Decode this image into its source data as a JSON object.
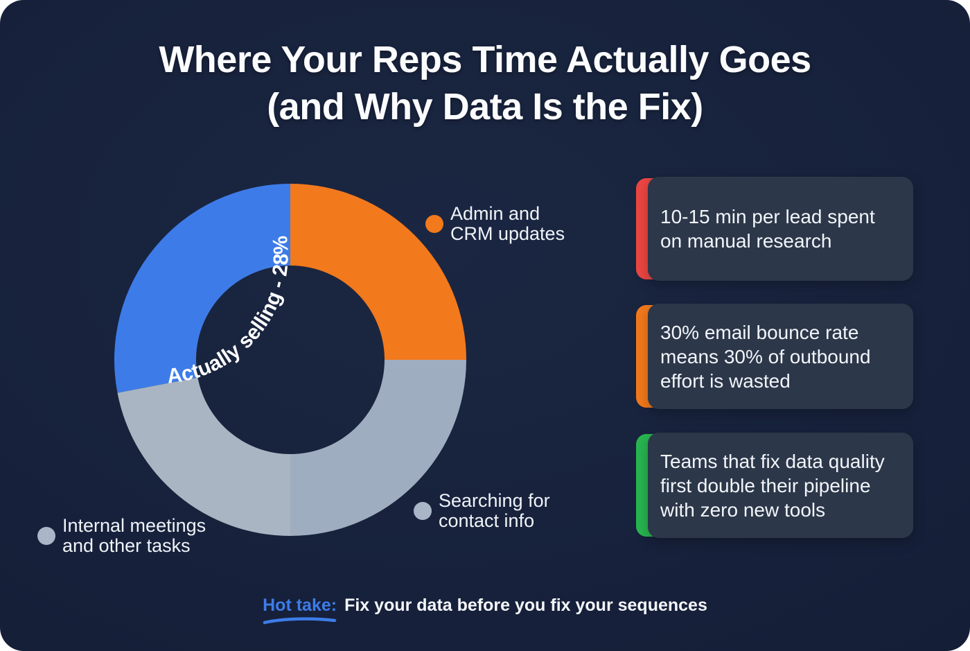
{
  "title": {
    "line1": "Where Your Reps Time Actually Goes",
    "line2": "(and Why Data Is the Fix)"
  },
  "chart_data": {
    "type": "donut",
    "title": "Where Your Reps Time Actually Goes (and Why Data Is the Fix)",
    "direction": "clockwise",
    "start_angle_deg": 0,
    "inner_radius_ratio": 0.54,
    "note": "Only the blue slice value (28%) is labeled in the image; other slice percentages are estimated from arc angles.",
    "segments": [
      {
        "label": "Admin and CRM updates",
        "value": 25,
        "color": "#f2791c"
      },
      {
        "label": "Searching for contact info",
        "value": 25,
        "color": "#9fadc0"
      },
      {
        "label": "Internal meetings and other tasks",
        "value": 22,
        "color": "#a9b5c3"
      },
      {
        "label": "Actually selling",
        "value": 28,
        "color": "#3d7ce8",
        "slice_label": "Actually selling - 28%"
      }
    ]
  },
  "legend": [
    {
      "lines": [
        "Admin and",
        "CRM updates"
      ],
      "color": "#f2791c"
    },
    {
      "lines": [
        "Searching for",
        "contact info"
      ],
      "color": "#a9b6c8"
    },
    {
      "lines": [
        "Internal meetings",
        "and other tasks"
      ],
      "color": "#a9b6c8"
    }
  ],
  "cards": [
    {
      "accent_color": "#ec4642",
      "lines": [
        "10-15 min per lead spent",
        "on manual research"
      ]
    },
    {
      "accent_color": "#f2791c",
      "lines": [
        "30% email bounce rate",
        "means 30% of outbound",
        "effort is wasted"
      ]
    },
    {
      "accent_color": "#28b550",
      "lines": [
        "Teams that fix data quality",
        "first double their pipeline",
        "with zero new tools"
      ]
    }
  ],
  "footer": {
    "highlight": "Hot take:",
    "highlight_color": "#3d7ce8",
    "text": "Fix your data before you fix your sequences"
  },
  "colors": {
    "panel_background": "#16203a",
    "card_background": "#2c3749",
    "text": "#f2f5fa"
  }
}
